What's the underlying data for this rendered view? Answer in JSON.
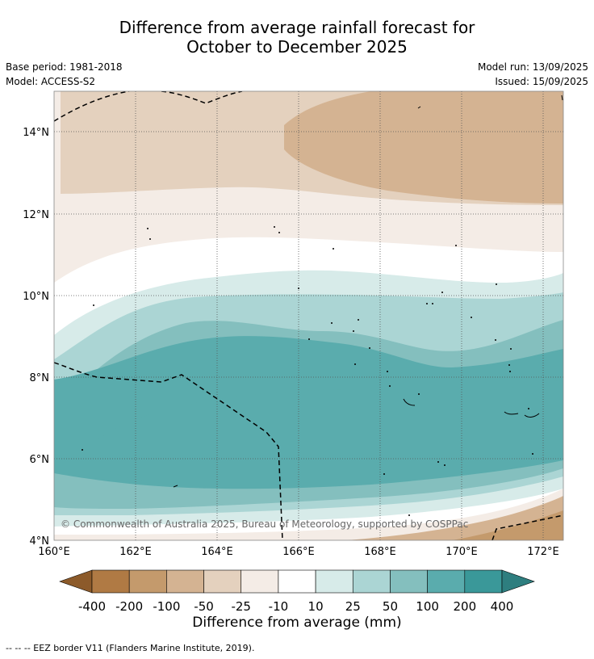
{
  "header": {
    "title_line1": "Difference from average rainfall forecast for",
    "title_line2": "October to December 2025",
    "base_period": "Base period: 1981-2018",
    "model": "Model: ACCESS-S2",
    "model_run": "Model run: 13/09/2025",
    "issued": "Issued: 15/09/2025"
  },
  "map": {
    "lat_labels": [
      "14°N",
      "12°N",
      "10°N",
      "8°N",
      "6°N",
      "4°N"
    ],
    "lon_labels": [
      "160°E",
      "162°E",
      "164°E",
      "166°E",
      "168°E",
      "170°E",
      "172°E"
    ],
    "copyright": "© Commonwealth of Australia 2025, Bureau of Meteorology, supported by COSPPac"
  },
  "colorbar": {
    "labels": [
      "-400",
      "-200",
      "-100",
      "-50",
      "-25",
      "-10",
      "10",
      "25",
      "50",
      "100",
      "200",
      "400"
    ],
    "colors": [
      "#8c5a2a",
      "#b07a44",
      "#c49a6c",
      "#d4b392",
      "#e4d1be",
      "#f4ece6",
      "#ffffff",
      "#d7ebe9",
      "#abd5d4",
      "#84bfbe",
      "#5aacad",
      "#3a9899",
      "#2e7e7f"
    ],
    "title": "Difference from average (mm)"
  },
  "footnote": "--  --  -- EEZ border V11 (Flanders Marine Institute, 2019)."
}
